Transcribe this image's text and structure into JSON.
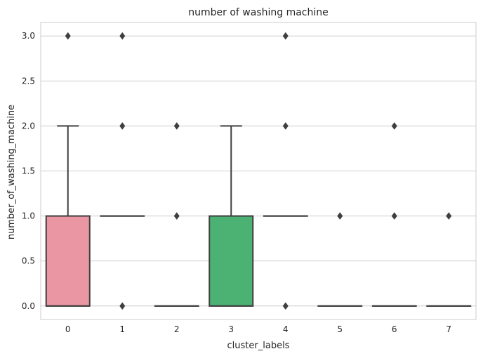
{
  "chart_data": {
    "type": "box",
    "title": "number of washing machine",
    "xlabel": "cluster_labels",
    "ylabel": "number_of_washing_machine",
    "categories": [
      "0",
      "1",
      "2",
      "3",
      "4",
      "5",
      "6",
      "7"
    ],
    "ylim": [
      -0.15,
      3.15
    ],
    "yticks": [
      "0.0",
      "0.5",
      "1.0",
      "1.5",
      "2.0",
      "2.5",
      "3.0"
    ],
    "grid": true,
    "boxes": [
      {
        "category": "0",
        "whisker_low": 0,
        "q1": 0,
        "median": 0,
        "q3": 1,
        "whisker_high": 2,
        "outliers": [
          3
        ],
        "color": "#ea96a3"
      },
      {
        "category": "1",
        "whisker_low": 1,
        "q1": 1,
        "median": 1,
        "q3": 1,
        "whisker_high": 1,
        "outliers": [
          0,
          2,
          3
        ],
        "color": "#dea56e"
      },
      {
        "category": "2",
        "whisker_low": 0,
        "q1": 0,
        "median": 0,
        "q3": 0,
        "whisker_high": 0,
        "outliers": [
          1,
          2
        ],
        "color": "#a3ad62"
      },
      {
        "category": "3",
        "whisker_low": 0,
        "q1": 0,
        "median": 0,
        "q3": 1,
        "whisker_high": 2,
        "outliers": [],
        "color": "#4bb273"
      },
      {
        "category": "4",
        "whisker_low": 1,
        "q1": 1,
        "median": 1,
        "q3": 1,
        "whisker_high": 1,
        "outliers": [
          0,
          2,
          3
        ],
        "color": "#55b0a8"
      },
      {
        "category": "5",
        "whisker_low": 0,
        "q1": 0,
        "median": 0,
        "q3": 0,
        "whisker_high": 0,
        "outliers": [
          1
        ],
        "color": "#5ea7c7"
      },
      {
        "category": "6",
        "whisker_low": 0,
        "q1": 0,
        "median": 0,
        "q3": 0,
        "whisker_high": 0,
        "outliers": [
          1,
          2
        ],
        "color": "#a998e8"
      },
      {
        "category": "7",
        "whisker_low": 0,
        "q1": 0,
        "median": 0,
        "q3": 0,
        "whisker_high": 0,
        "outliers": [
          1
        ],
        "color": "#e293d2"
      }
    ],
    "colors": {
      "grid": "#cccccc",
      "line": "#3f3f3f",
      "background": "#ffffff"
    }
  }
}
